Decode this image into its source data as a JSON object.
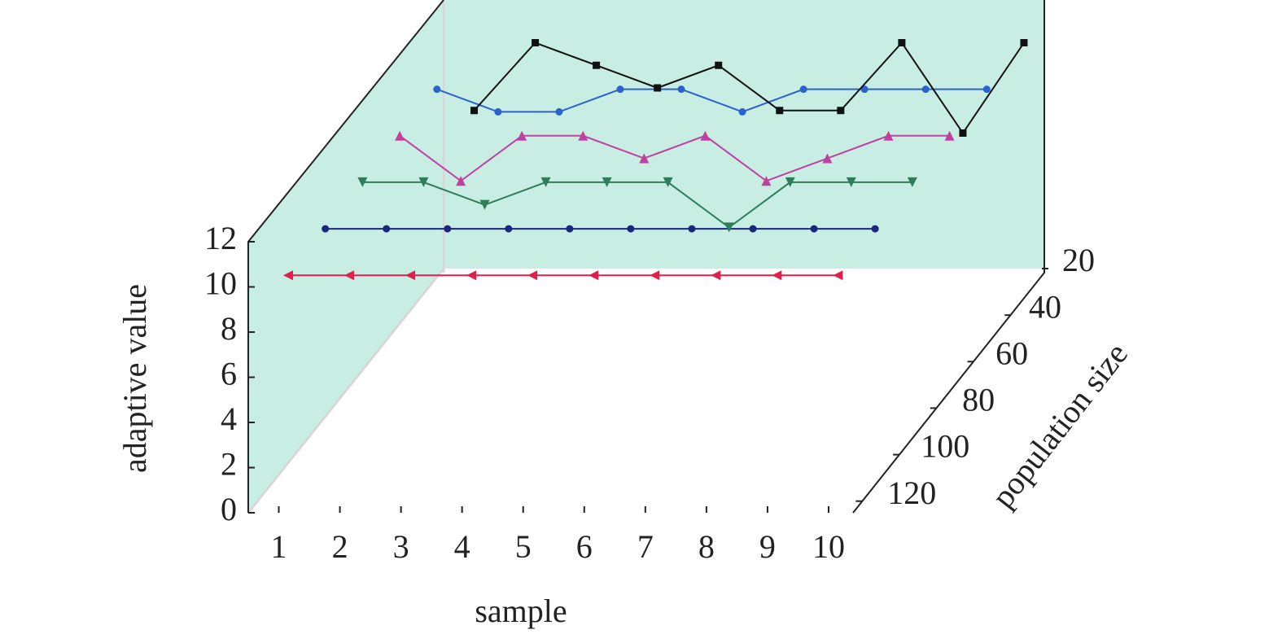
{
  "chart_data": {
    "type": "line3d",
    "xlabel": "sample",
    "ylabel": "adaptive value",
    "zlabel": "population size",
    "xlim": [
      0.5,
      10.4
    ],
    "xticks": [
      1,
      2,
      3,
      4,
      5,
      6,
      7,
      8,
      9,
      10
    ],
    "ylim": [
      0,
      12
    ],
    "yticks": [
      0,
      2,
      4,
      6,
      8,
      10,
      12
    ],
    "zlim": [
      125,
      20
    ],
    "zticks": [
      20,
      40,
      60,
      80,
      100,
      120
    ],
    "x": [
      1,
      2,
      3,
      4,
      5,
      6,
      7,
      8,
      9,
      10
    ],
    "series": [
      {
        "z": 120,
        "color": "#e0204a",
        "marker": "triangle-left",
        "values": [
          10,
          10,
          10,
          10,
          10,
          10,
          10,
          10,
          10,
          10
        ]
      },
      {
        "z": 100,
        "color": "#1c2580",
        "marker": "circle",
        "values": [
          10,
          10,
          10,
          10,
          10,
          10,
          10,
          10,
          10,
          10
        ]
      },
      {
        "z": 80,
        "color": "#2e7d5b",
        "marker": "triangle-down",
        "values": [
          10,
          10,
          9,
          10,
          10,
          10,
          8,
          10,
          10,
          10
        ]
      },
      {
        "z": 60,
        "color": "#c040a0",
        "marker": "triangle-up",
        "values": [
          10,
          8,
          10,
          10,
          9,
          10,
          8,
          9,
          10,
          10
        ]
      },
      {
        "z": 40,
        "color": "#2a62d0",
        "marker": "circle",
        "values": [
          10,
          9,
          9,
          10,
          10,
          9,
          10,
          10,
          10,
          10
        ]
      },
      {
        "z": 20,
        "color": "#111111",
        "marker": "square",
        "values": [
          7,
          10,
          9,
          8,
          9,
          7,
          7,
          10,
          6,
          10
        ]
      }
    ]
  }
}
